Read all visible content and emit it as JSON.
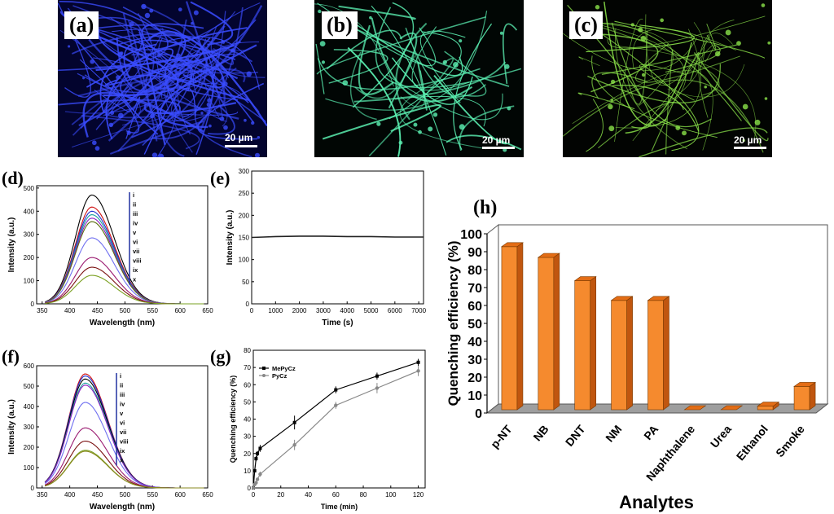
{
  "figure": {
    "panels": {
      "a": {
        "tag": "(a)",
        "scale": "20 µm",
        "color": "#3a4cff"
      },
      "b": {
        "tag": "(b)",
        "scale": "20 µm",
        "color": "#5cf3b4"
      },
      "c": {
        "tag": "(c)",
        "scale": "20 µm",
        "color": "#8be34a"
      }
    }
  },
  "chart_data": [
    {
      "panel": "(d)",
      "type": "line",
      "xlabel": "Wavelength (nm)",
      "ylabel": "Intensity (a.u.)",
      "xlim": [
        340,
        650
      ],
      "ylim": [
        0,
        510
      ],
      "xticks": [
        350,
        400,
        450,
        500,
        550,
        600,
        650
      ],
      "yticks": [
        0,
        100,
        200,
        300,
        400,
        500
      ],
      "peak_x": 440,
      "legend": [
        "i",
        "ii",
        "iii",
        "iv",
        "v",
        "vi",
        "vii",
        "viii",
        "ix",
        "x"
      ],
      "series": [
        {
          "peak": 470,
          "color": "#000000"
        },
        {
          "peak": 418,
          "color": "#d01010"
        },
        {
          "peak": 400,
          "color": "#2030d0"
        },
        {
          "peak": 385,
          "color": "#19a0a0"
        },
        {
          "peak": 370,
          "color": "#8a1cc0"
        },
        {
          "peak": 355,
          "color": "#5a6e10"
        },
        {
          "peak": 285,
          "color": "#7070f0"
        },
        {
          "peak": 200,
          "color": "#9a1a70"
        },
        {
          "peak": 158,
          "color": "#7a1010"
        },
        {
          "peak": 123,
          "color": "#7aa020"
        }
      ]
    },
    {
      "panel": "(e)",
      "type": "line",
      "xlabel": "Time (s)",
      "ylabel": "Intensity (a.u.)",
      "xlim": [
        0,
        7200
      ],
      "ylim": [
        0,
        300
      ],
      "xticks": [
        0,
        1000,
        2000,
        3000,
        4000,
        5000,
        6000,
        7000
      ],
      "yticks": [
        0,
        50,
        100,
        150,
        200,
        250,
        300
      ],
      "series": [
        {
          "x": [
            0,
            500,
            1000,
            2000,
            3000,
            4000,
            5000,
            6000,
            7000,
            7200
          ],
          "y": [
            150,
            151,
            152,
            153,
            153,
            152,
            152,
            151,
            151,
            151
          ]
        }
      ]
    },
    {
      "panel": "(f)",
      "type": "line",
      "xlabel": "Wavelength (nm)",
      "ylabel": "Intensity (a.u.)",
      "xlim": [
        340,
        650
      ],
      "ylim": [
        0,
        600
      ],
      "xticks": [
        350,
        400,
        450,
        500,
        550,
        600,
        650
      ],
      "yticks": [
        0,
        100,
        200,
        300,
        400,
        500,
        600
      ],
      "peak_x": 428,
      "legend": [
        "i",
        "ii",
        "iii",
        "iv",
        "v",
        "vi",
        "vii",
        "viii",
        "ix",
        "x"
      ],
      "series": [
        {
          "peak": 560,
          "color": "#d01010"
        },
        {
          "peak": 550,
          "color": "#2030d0"
        },
        {
          "peak": 535,
          "color": "#000000"
        },
        {
          "peak": 515,
          "color": "#19a0a0"
        },
        {
          "peak": 505,
          "color": "#8a1cc0"
        },
        {
          "peak": 420,
          "color": "#7070f0"
        },
        {
          "peak": 295,
          "color": "#9a1a70"
        },
        {
          "peak": 230,
          "color": "#7a1010"
        },
        {
          "peak": 185,
          "color": "#7aa020"
        },
        {
          "peak": 180,
          "color": "#8a8a20"
        }
      ]
    },
    {
      "panel": "(g)",
      "type": "line",
      "xlabel": "Time (min)",
      "ylabel": "Quenching efficiency (%)",
      "xlim": [
        0,
        125
      ],
      "ylim": [
        0,
        80
      ],
      "xticks": [
        0,
        20,
        40,
        60,
        80,
        100,
        120
      ],
      "yticks": [
        0,
        10,
        20,
        30,
        40,
        50,
        60,
        70,
        80
      ],
      "series": [
        {
          "name": "MePyCz",
          "color": "#000000",
          "x": [
            0,
            1,
            2,
            3,
            5,
            30,
            60,
            90,
            120
          ],
          "y": [
            0,
            10,
            17,
            20,
            23,
            38,
            57,
            65,
            73
          ],
          "err": [
            0,
            1,
            1.5,
            1.5,
            2,
            4,
            2,
            2,
            2
          ]
        },
        {
          "name": "PyCz",
          "color": "#888888",
          "x": [
            0,
            1,
            2,
            3,
            5,
            30,
            60,
            90,
            120
          ],
          "y": [
            0,
            2,
            3,
            5,
            8,
            25,
            48,
            58,
            68
          ],
          "err": [
            0,
            1,
            1,
            1,
            1.5,
            3,
            2,
            3,
            3
          ]
        }
      ]
    },
    {
      "panel": "(h)",
      "type": "bar",
      "xlabel": "Analytes",
      "ylabel": "Quenching efficiency (%)",
      "ylim": [
        0,
        100
      ],
      "yticks": [
        0,
        10,
        20,
        30,
        40,
        50,
        60,
        70,
        80,
        90,
        100
      ],
      "categories": [
        "p-NT",
        "NB",
        "DNT",
        "NM",
        "PA",
        "Naphthalene",
        "Urea",
        "Ethanol",
        "Smoke"
      ],
      "values": [
        91,
        85,
        72,
        61,
        61,
        0,
        0,
        2,
        13
      ],
      "color": "#f58a2e",
      "grid": false
    }
  ]
}
